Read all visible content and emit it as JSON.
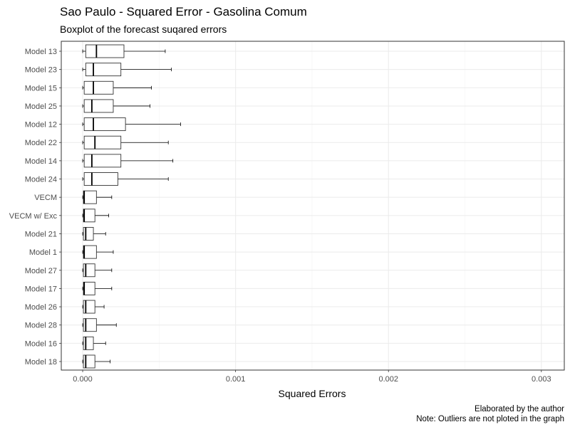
{
  "chart_data": {
    "type": "boxplot",
    "title": "Sao Paulo - Squared Error - Gasolina Comum",
    "subtitle": "Boxplot of the forecast suqared errors",
    "xlabel": "Squared Errors",
    "ylabel": "",
    "xlim": [
      -0.00014,
      0.00315
    ],
    "x_ticks": [
      0.0,
      0.001,
      0.002,
      0.003
    ],
    "x_tick_labels": [
      "0.000",
      "0.001",
      "0.002",
      "0.003"
    ],
    "grid": true,
    "captions": [
      "Elaborated by the author",
      "Note: Outliers are not ploted in the graph"
    ],
    "series": [
      {
        "category": "Model 13",
        "whisker_low": 0.0,
        "q1": 2e-05,
        "median": 9e-05,
        "q3": 0.00027,
        "whisker_high": 0.00054
      },
      {
        "category": "Model 23",
        "whisker_low": 0.0,
        "q1": 2e-05,
        "median": 7e-05,
        "q3": 0.00025,
        "whisker_high": 0.00058
      },
      {
        "category": "Model 15",
        "whisker_low": 0.0,
        "q1": 1e-05,
        "median": 7e-05,
        "q3": 0.0002,
        "whisker_high": 0.00045
      },
      {
        "category": "Model 25",
        "whisker_low": 0.0,
        "q1": 1e-05,
        "median": 6e-05,
        "q3": 0.0002,
        "whisker_high": 0.00044
      },
      {
        "category": "Model 12",
        "whisker_low": 0.0,
        "q1": 1e-05,
        "median": 7e-05,
        "q3": 0.00028,
        "whisker_high": 0.00064
      },
      {
        "category": "Model 22",
        "whisker_low": 0.0,
        "q1": 1e-05,
        "median": 8e-05,
        "q3": 0.00025,
        "whisker_high": 0.00056
      },
      {
        "category": "Model 14",
        "whisker_low": 0.0,
        "q1": 1e-05,
        "median": 6e-05,
        "q3": 0.00025,
        "whisker_high": 0.00059
      },
      {
        "category": "Model 24",
        "whisker_low": 0.0,
        "q1": 1e-05,
        "median": 6e-05,
        "q3": 0.00023,
        "whisker_high": 0.00056
      },
      {
        "category": "VECM",
        "whisker_low": 0.0,
        "q1": 5e-06,
        "median": 1e-05,
        "q3": 9e-05,
        "whisker_high": 0.00019
      },
      {
        "category": "VECM w/ Exc",
        "whisker_low": 0.0,
        "q1": 5e-06,
        "median": 1e-05,
        "q3": 8e-05,
        "whisker_high": 0.00017
      },
      {
        "category": "Model 21",
        "whisker_low": 0.0,
        "q1": 5e-06,
        "median": 2e-05,
        "q3": 7e-05,
        "whisker_high": 0.00015
      },
      {
        "category": "Model 1",
        "whisker_low": 0.0,
        "q1": 5e-06,
        "median": 1e-05,
        "q3": 9e-05,
        "whisker_high": 0.0002
      },
      {
        "category": "Model 27",
        "whisker_low": 0.0,
        "q1": 5e-06,
        "median": 2e-05,
        "q3": 8e-05,
        "whisker_high": 0.00019
      },
      {
        "category": "Model 17",
        "whisker_low": 0.0,
        "q1": 5e-06,
        "median": 1e-05,
        "q3": 8e-05,
        "whisker_high": 0.00019
      },
      {
        "category": "Model 26",
        "whisker_low": 0.0,
        "q1": 5e-06,
        "median": 2e-05,
        "q3": 8e-05,
        "whisker_high": 0.00014
      },
      {
        "category": "Model 28",
        "whisker_low": 0.0,
        "q1": 5e-06,
        "median": 2e-05,
        "q3": 9e-05,
        "whisker_high": 0.00022
      },
      {
        "category": "Model 16",
        "whisker_low": 0.0,
        "q1": 5e-06,
        "median": 2e-05,
        "q3": 7e-05,
        "whisker_high": 0.00015
      },
      {
        "category": "Model 18",
        "whisker_low": 0.0,
        "q1": 5e-06,
        "median": 2e-05,
        "q3": 8e-05,
        "whisker_high": 0.00018
      }
    ]
  }
}
